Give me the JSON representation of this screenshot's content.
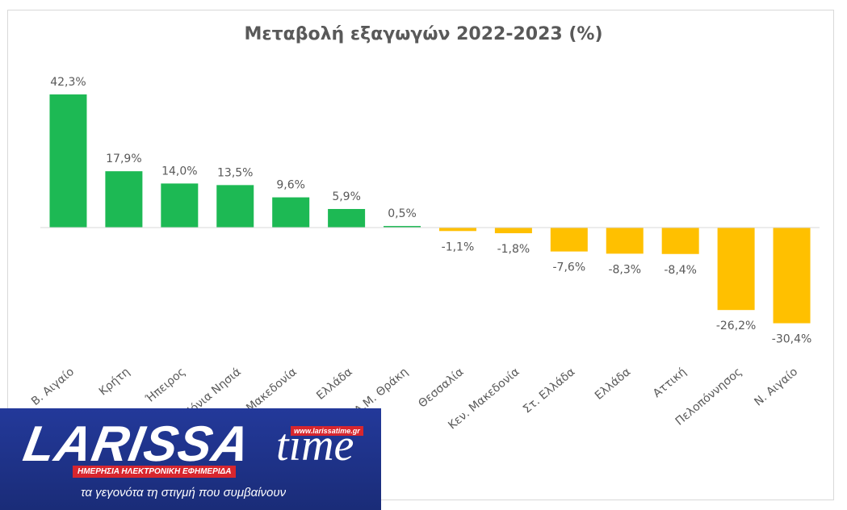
{
  "chart_data": {
    "type": "bar",
    "title": "Μεταβολή εξαγωγών 2022-2023 (%)",
    "categories": [
      "Β. Αιγαίο",
      "Κρήτη",
      "Ήπειρος",
      "Ιόνια Νησιά",
      "Δ. Μακεδονία",
      "Ελλάδα",
      "Α.Μ. Θράκη",
      "Θεσσαλία",
      "Κεν. Μακεδονία",
      "Στ. Ελλάδα",
      "Ελλάδα",
      "Αττική",
      "Πελοπόννησος",
      "Ν. Αιγαίο"
    ],
    "values": [
      42.3,
      17.9,
      14.0,
      13.5,
      9.6,
      5.9,
      0.5,
      -1.1,
      -1.8,
      -7.6,
      -8.3,
      -8.4,
      -26.2,
      -30.4
    ],
    "data_labels": [
      "42,3%",
      "17,9%",
      "14,0%",
      "13,5%",
      "9,6%",
      "5,9%",
      "0,5%",
      "-1,1%",
      "-1,8%",
      "-7,6%",
      "-8,3%",
      "-8,4%",
      "-26,2%",
      "-30,4%"
    ],
    "colors": {
      "positive": "#1db954",
      "negative": "#ffc000"
    },
    "ylim": [
      -33,
      45
    ],
    "grid": false,
    "legend": "none"
  },
  "logo": {
    "word": "LARISSA",
    "word2": "time",
    "url": "www.larissatime.gr",
    "subtitle": "ΗΜΕΡΗΣΙΑ ΗΛΕΚΤΡΟΝΙΚΗ ΕΦΗΜΕΡΙΔΑ",
    "tagline": "τα γεγονότα τη στιγμή που συμβαίνουν"
  }
}
